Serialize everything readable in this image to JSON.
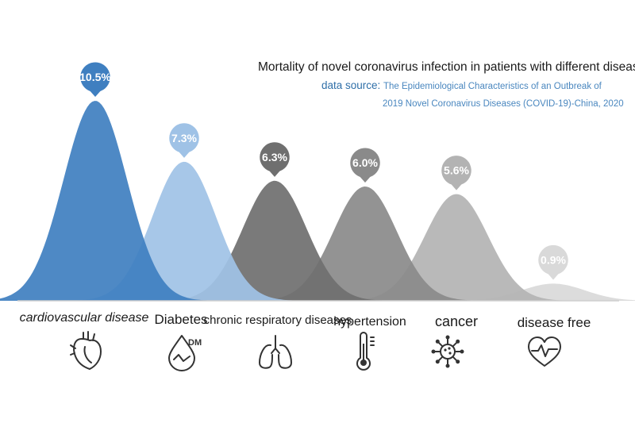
{
  "chart_data": {
    "type": "area",
    "title": "Mortality of novel coronavirus infection in patients with different diseases",
    "source_label": "data source:",
    "source_line1": "The Epidemiological Characteristics of an Outbreak of",
    "source_line2": "2019 Novel Coronavirus Diseases (COVID-19)-China, 2020",
    "unit": "%",
    "categories": [
      "cardiovascular disease",
      "Diabetes",
      "chronic respiratory diseases",
      "hypertension",
      "cancer",
      "disease free"
    ],
    "values": [
      10.5,
      7.3,
      6.3,
      6.0,
      5.6,
      0.9
    ],
    "value_labels": [
      "10.5%",
      "7.3%",
      "6.3%",
      "6.0%",
      "5.6%",
      "0.9%"
    ],
    "colors": [
      "#3f7fc0",
      "#9fc2e6",
      "#6f6f6f",
      "#8a8a8a",
      "#b3b3b3",
      "#d9d9d9"
    ],
    "icons": [
      "heart-organ-icon",
      "diabetes-drop-icon",
      "lungs-icon",
      "thermometer-icon",
      "virus-icon",
      "heart-pulse-icon"
    ],
    "ylim": [
      0,
      12
    ]
  }
}
